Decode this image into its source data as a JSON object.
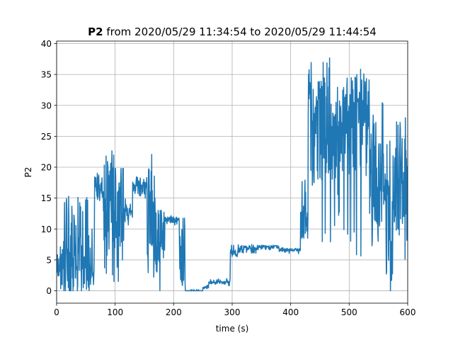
{
  "chart_data": {
    "type": "line",
    "title_bold": "P2",
    "title_rest": " from 2020/05/29 11:34:54 to 2020/05/29 11:44:54",
    "xlabel": "time (s)",
    "ylabel": "P2",
    "xlim": [
      0,
      600
    ],
    "ylim": [
      -2,
      40.4
    ],
    "xticks": [
      0,
      100,
      200,
      300,
      400,
      500,
      600
    ],
    "yticks": [
      0,
      5,
      10,
      15,
      20,
      25,
      30,
      35,
      40
    ],
    "grid": true,
    "series_color": "#1f77b4",
    "segments": [
      {
        "x0": 0,
        "x1": 12,
        "lo": 0,
        "hi": 7.5,
        "base": 4,
        "noise": 2
      },
      {
        "x0": 12,
        "x1": 35,
        "lo": 0,
        "hi": 15.5,
        "base": 6,
        "noise": 7
      },
      {
        "x0": 35,
        "x1": 60,
        "lo": 0,
        "hi": 15.8,
        "base": 4,
        "noise": 5
      },
      {
        "x0": 60,
        "x1": 65,
        "lo": 1,
        "hi": 10.5,
        "base": 4,
        "noise": 4
      },
      {
        "x0": 65,
        "x1": 80,
        "lo": 14.5,
        "hi": 19.5,
        "base": 16.3,
        "noise": 1.2
      },
      {
        "x0": 80,
        "x1": 100,
        "lo": 0.5,
        "hi": 23,
        "base": 15,
        "noise": 9
      },
      {
        "x0": 100,
        "x1": 115,
        "lo": 0.5,
        "hi": 19.8,
        "base": 14,
        "noise": 7
      },
      {
        "x0": 115,
        "x1": 130,
        "lo": 10,
        "hi": 15,
        "base": 12.5,
        "noise": 1.2
      },
      {
        "x0": 130,
        "x1": 155,
        "lo": 14.5,
        "hi": 18.5,
        "base": 16.6,
        "noise": 1
      },
      {
        "x0": 155,
        "x1": 170,
        "lo": 0,
        "hi": 22.2,
        "base": 12,
        "noise": 8
      },
      {
        "x0": 170,
        "x1": 185,
        "lo": 0,
        "hi": 13,
        "base": 9,
        "noise": 5
      },
      {
        "x0": 185,
        "x1": 210,
        "lo": 10.5,
        "hi": 12.2,
        "base": 11.5,
        "noise": 0.5
      },
      {
        "x0": 210,
        "x1": 220,
        "lo": 0,
        "hi": 12,
        "base": 6,
        "noise": 6
      },
      {
        "x0": 220,
        "x1": 250,
        "lo": 0,
        "hi": 0.2,
        "base": 0,
        "noise": 0.05
      },
      {
        "x0": 250,
        "x1": 260,
        "lo": 0.3,
        "hi": 0.9,
        "base": 0.6,
        "noise": 0.15
      },
      {
        "x0": 260,
        "x1": 297,
        "lo": 0.8,
        "hi": 2,
        "base": 1.3,
        "noise": 0.25
      },
      {
        "x0": 297,
        "x1": 310,
        "lo": 5.5,
        "hi": 7.6,
        "base": 6.2,
        "noise": 0.5
      },
      {
        "x0": 310,
        "x1": 345,
        "lo": 6,
        "hi": 7.5,
        "base": 6.9,
        "noise": 0.35
      },
      {
        "x0": 345,
        "x1": 380,
        "lo": 6.6,
        "hi": 7.4,
        "base": 7.1,
        "noise": 0.25
      },
      {
        "x0": 380,
        "x1": 417,
        "lo": 6,
        "hi": 7,
        "base": 6.6,
        "noise": 0.25
      },
      {
        "x0": 417,
        "x1": 430,
        "lo": 8.5,
        "hi": 18,
        "base": 11,
        "noise": 3
      },
      {
        "x0": 430,
        "x1": 470,
        "lo": 3.5,
        "hi": 38.5,
        "base": 26,
        "noise": 9
      },
      {
        "x0": 470,
        "x1": 490,
        "lo": 10,
        "hi": 33,
        "base": 24,
        "noise": 7
      },
      {
        "x0": 490,
        "x1": 535,
        "lo": 3.8,
        "hi": 37.3,
        "base": 27,
        "noise": 9
      },
      {
        "x0": 535,
        "x1": 560,
        "lo": 7,
        "hi": 31,
        "base": 16,
        "noise": 8
      },
      {
        "x0": 560,
        "x1": 575,
        "lo": 0,
        "hi": 26,
        "base": 11,
        "noise": 8
      },
      {
        "x0": 575,
        "x1": 600,
        "lo": 5,
        "hi": 28,
        "base": 17,
        "noise": 8
      }
    ]
  }
}
